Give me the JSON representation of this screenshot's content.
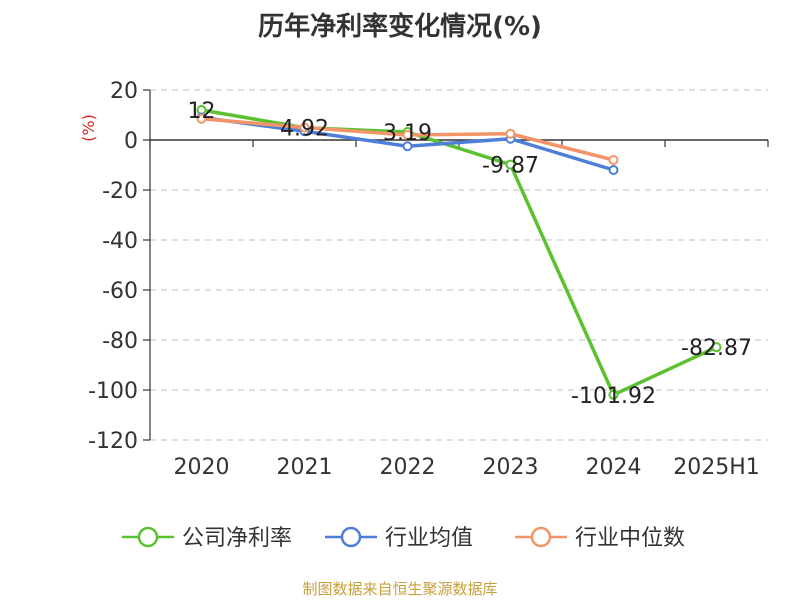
{
  "chart_data": {
    "type": "line",
    "title": "历年净利率变化情况(%)",
    "ylabel": "(%)",
    "categories": [
      "2020",
      "2021",
      "2022",
      "2023",
      "2024",
      "2025H1"
    ],
    "ylim": [
      -120,
      20
    ],
    "yticks": [
      20,
      0,
      -20,
      -40,
      -60,
      -80,
      -100,
      -120
    ],
    "grid": true,
    "legend_position": "bottom",
    "series": [
      {
        "name": "公司净利率",
        "color": "#5cc130",
        "values": [
          12,
          4.92,
          3.19,
          -9.87,
          -101.92,
          -82.87
        ],
        "labels": [
          "12",
          "4.92",
          "3.19",
          "-9.87",
          "-101.92",
          "-82.87"
        ]
      },
      {
        "name": "行业均值",
        "color": "#4f7ed8",
        "values": [
          9,
          3.5,
          -2.5,
          0.5,
          -12,
          null
        ]
      },
      {
        "name": "行业中位数",
        "color": "#f49569",
        "values": [
          8.5,
          5,
          2,
          2.5,
          -8,
          null
        ]
      }
    ]
  },
  "footer": {
    "source": "制图数据来自恒生聚源数据库"
  }
}
